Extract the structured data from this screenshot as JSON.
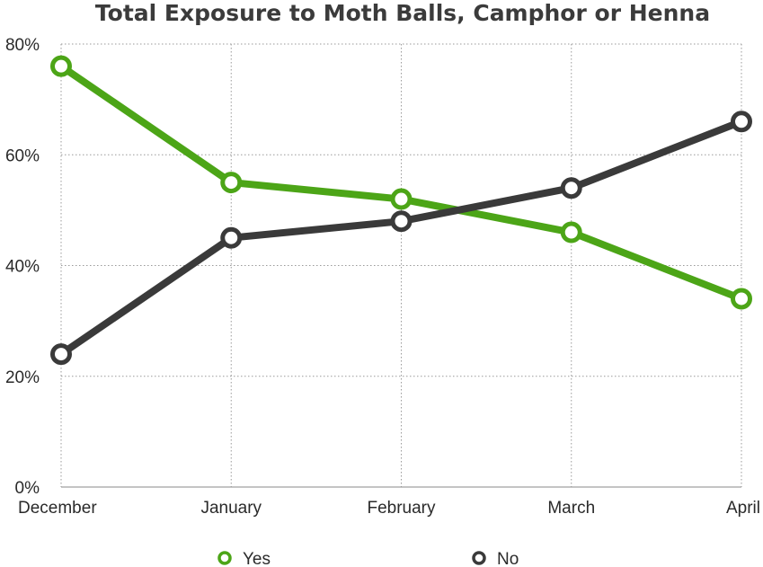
{
  "chart_data": {
    "type": "line",
    "title": "Total Exposure to Moth Balls, Camphor or Henna",
    "categories": [
      "December",
      "January",
      "February",
      "March",
      "April"
    ],
    "series": [
      {
        "name": "Yes",
        "color": "#4ca517",
        "values": [
          76,
          55,
          52,
          46,
          34
        ]
      },
      {
        "name": "No",
        "color": "#3a3a3a",
        "values": [
          24,
          45,
          48,
          54,
          66
        ]
      }
    ],
    "yticks": [
      "0%",
      "20%",
      "40%",
      "60%",
      "80%"
    ],
    "ylim": [
      0,
      80
    ],
    "y_unit": "percent",
    "grid": true,
    "legend_position": "bottom-center"
  }
}
